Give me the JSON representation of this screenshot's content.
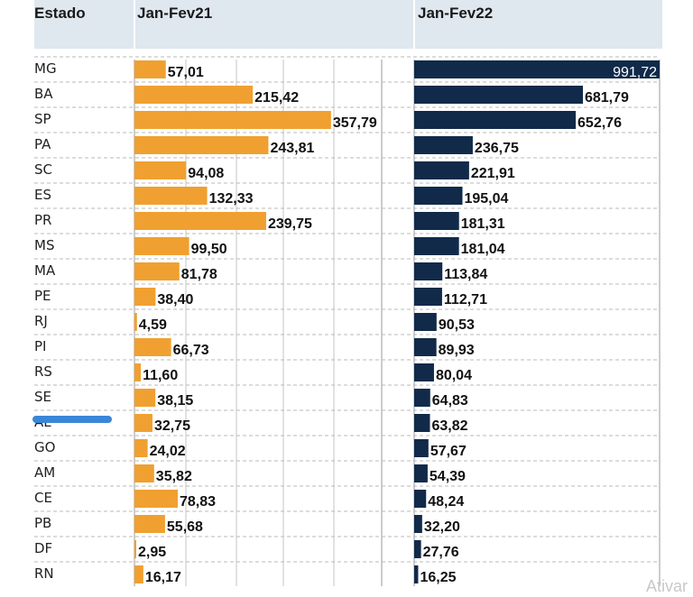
{
  "header": {
    "state_col": "Estado",
    "col1": "Jan-Fev21",
    "col2": "Jan-Fev22"
  },
  "colors": {
    "bar_2021": "#f0a030",
    "bar_2022": "#112a4a",
    "header_bg": "#dfe7ef",
    "highlight": "#3a86d8"
  },
  "chart_data": {
    "type": "bar",
    "orientation": "horizontal",
    "categories": [
      "MG",
      "BA",
      "SP",
      "PA",
      "SC",
      "ES",
      "PR",
      "MS",
      "MA",
      "PE",
      "RJ",
      "PI",
      "RS",
      "SE",
      "AL",
      "GO",
      "AM",
      "CE",
      "PB",
      "DF",
      "RN"
    ],
    "series": [
      {
        "name": "Jan-Fev21",
        "values": [
          57.01,
          215.42,
          357.79,
          243.81,
          94.08,
          132.33,
          239.75,
          99.5,
          81.78,
          38.4,
          4.59,
          66.73,
          11.6,
          38.15,
          32.75,
          24.02,
          35.82,
          78.83,
          55.68,
          2.95,
          16.17
        ]
      },
      {
        "name": "Jan-Fev22",
        "values": [
          991.72,
          681.79,
          652.76,
          236.75,
          221.91,
          195.04,
          181.31,
          181.04,
          113.84,
          112.71,
          90.53,
          89.93,
          80.04,
          64.83,
          63.82,
          57.67,
          54.39,
          48.24,
          32.2,
          27.76,
          16.25
        ]
      }
    ],
    "labels_2021": [
      "57,01",
      "215,42",
      "357,79",
      "243,81",
      "94,08",
      "132,33",
      "239,75",
      "99,50",
      "81,78",
      "38,40",
      "4,59",
      "66,73",
      "11,60",
      "38,15",
      "32,75",
      "24,02",
      "35,82",
      "78,83",
      "55,68",
      "2,95",
      "16,17"
    ],
    "labels_2022": [
      "991,72",
      "681,79",
      "652,76",
      "236,75",
      "221,91",
      "195,04",
      "181,31",
      "181,04",
      "113,84",
      "112,71",
      "90,53",
      "89,93",
      "80,04",
      "64,83",
      "63,82",
      "57,67",
      "54,39",
      "48,24",
      "32,20",
      "27,76",
      "16,25"
    ],
    "xlim_2021": [
      0,
      450
    ],
    "xlim_2022": [
      0,
      991.72
    ],
    "grid": true,
    "legend": "none"
  },
  "watermark": "Ativar"
}
